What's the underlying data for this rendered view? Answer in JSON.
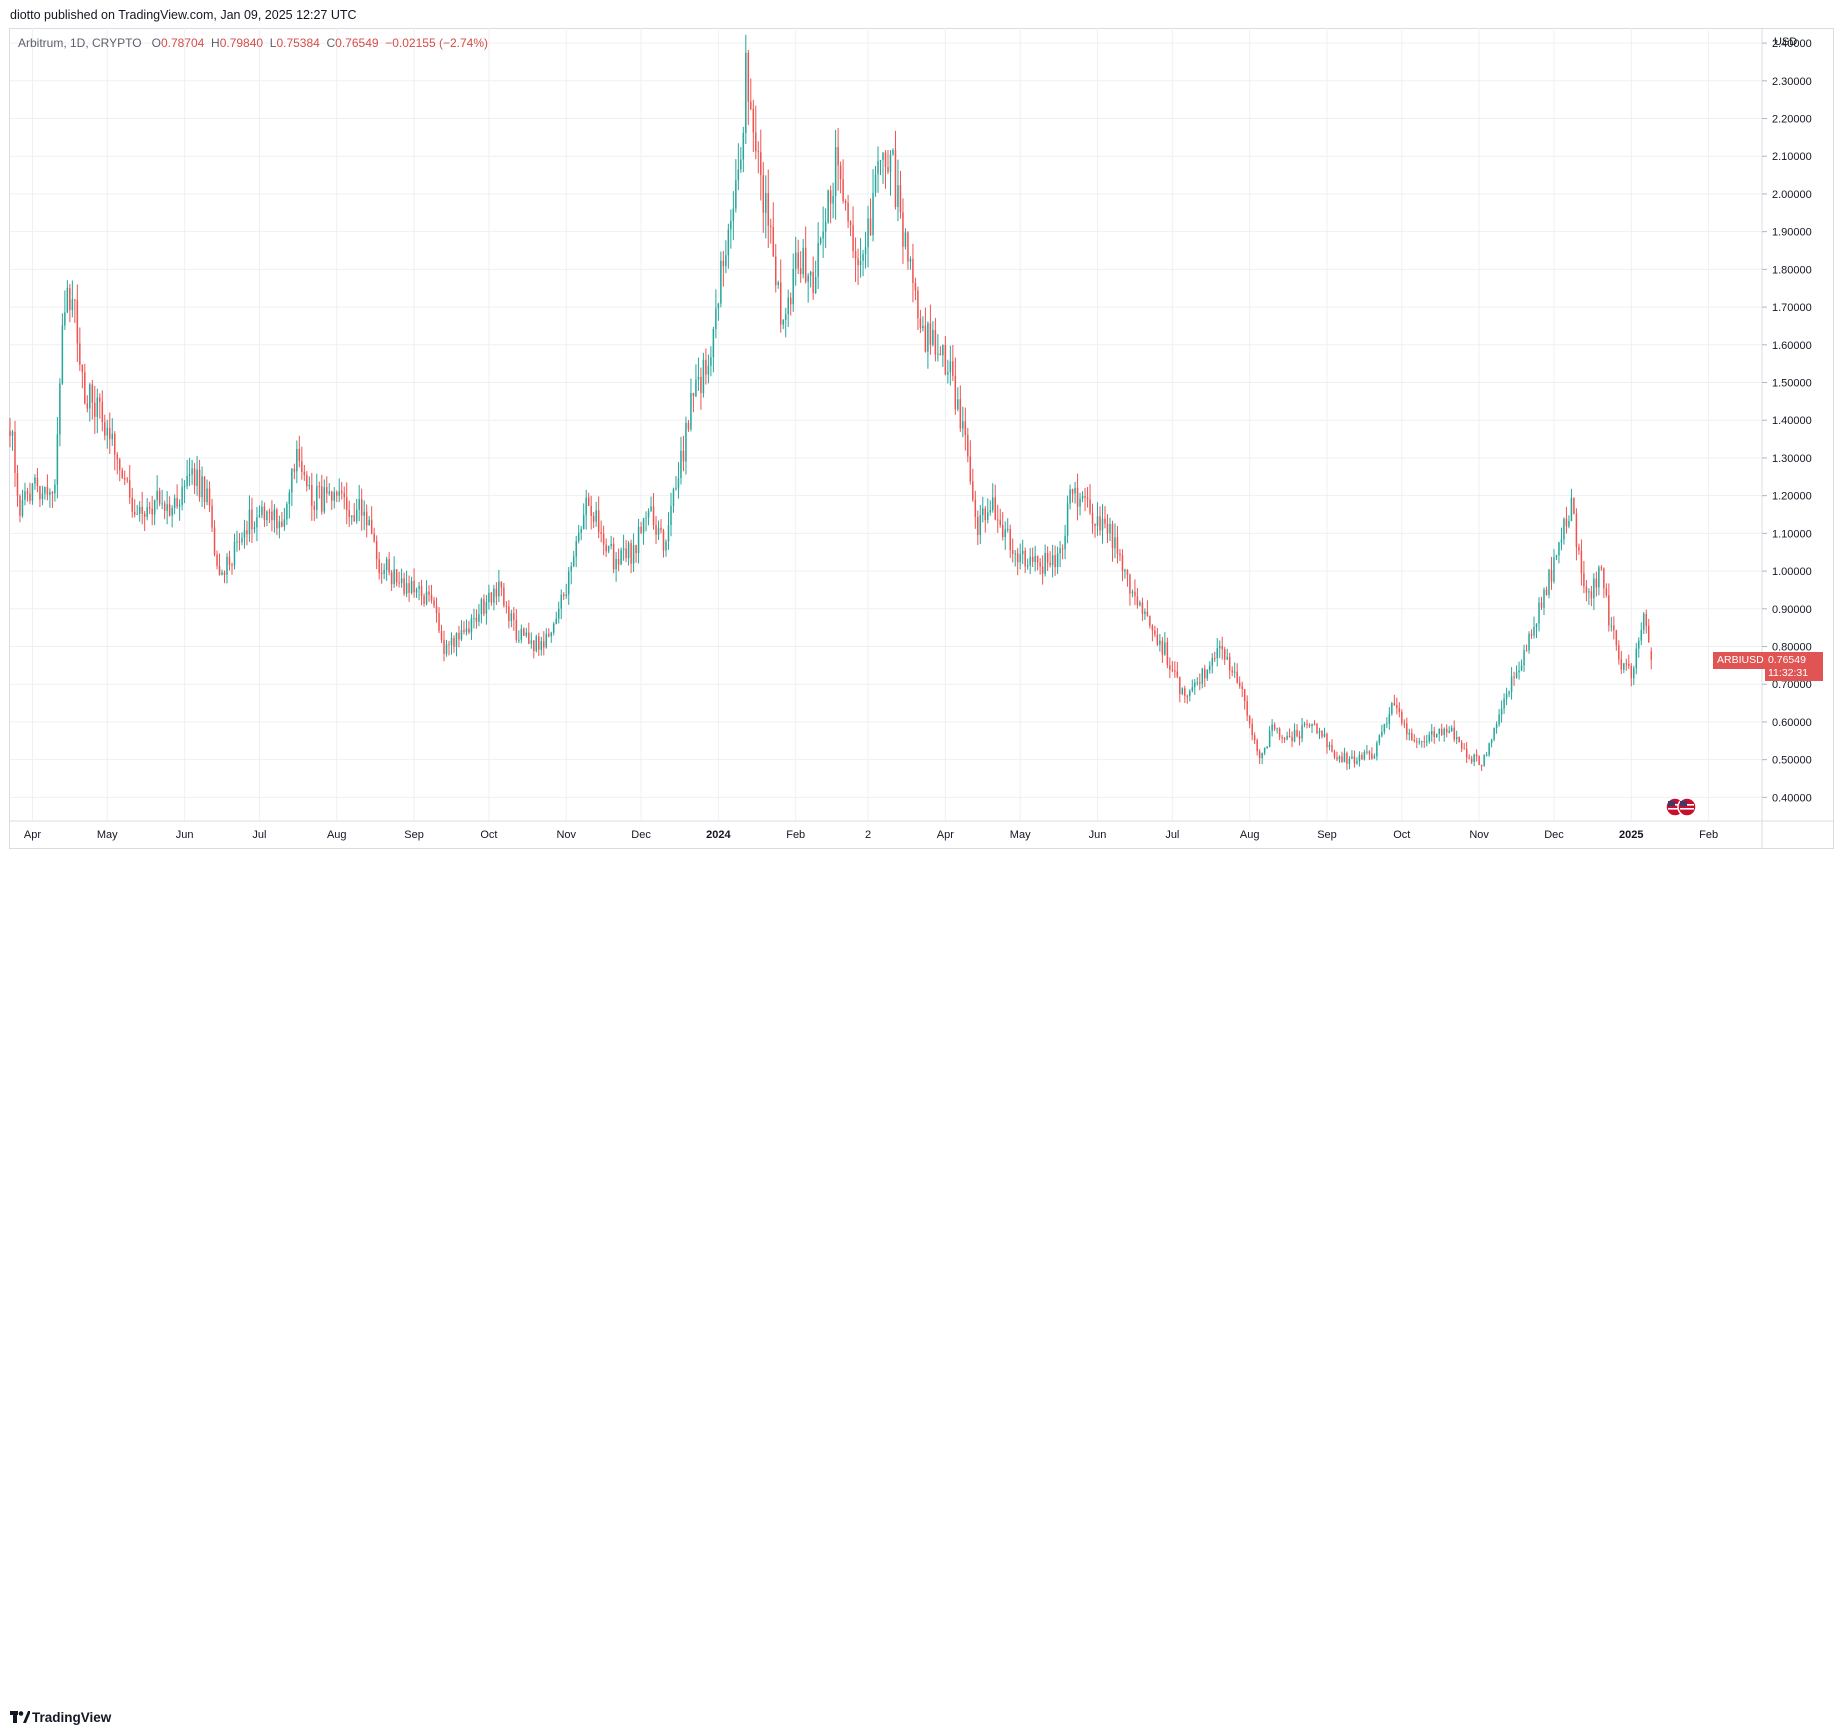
{
  "header": {
    "published_by": "diotto published on TradingView.com, Jan 09, 2025 12:27 UTC"
  },
  "legend": {
    "symbol": "Arbitrum, 1D, CRYPTO",
    "open_label": "O",
    "open": "0.78704",
    "high_label": "H",
    "high": "0.79840",
    "low_label": "L",
    "low": "0.75384",
    "close_label": "C",
    "close": "0.76549",
    "change": "−0.02155 (−2.74%)"
  },
  "axis": {
    "currency": "USD"
  },
  "price_marker": {
    "ticker": "ARBIUSD",
    "price": "0.76549",
    "countdown": "11:32:31"
  },
  "footer": {
    "brand": "TradingView"
  },
  "colors": {
    "up": "#26a69a",
    "down": "#ef5350",
    "grid": "#eef0f3",
    "price_tag": "#e05454"
  },
  "icons": {
    "brand_logo": "tradingview-logo-icon",
    "region": "us-flag-icon"
  },
  "chart_data": {
    "type": "candlestick",
    "title": "Arbitrum, 1D, CRYPTO",
    "ylabel": "USD",
    "ylim": [
      0.34,
      2.44
    ],
    "y_ticks": [
      "2.40000",
      "2.30000",
      "2.20000",
      "2.10000",
      "2.00000",
      "1.90000",
      "1.80000",
      "1.70000",
      "1.60000",
      "1.50000",
      "1.40000",
      "1.30000",
      "1.20000",
      "1.10000",
      "1.00000",
      "0.90000",
      "0.80000",
      "0.70000",
      "0.60000",
      "0.50000",
      "0.40000"
    ],
    "x_ticks": [
      "Apr",
      "May",
      "Jun",
      "Jul",
      "Aug",
      "Sep",
      "Oct",
      "Nov",
      "Dec",
      "2024",
      "Feb",
      "2",
      "Apr",
      "May",
      "Jun",
      "Jul",
      "Aug",
      "Sep",
      "Oct",
      "Nov",
      "Dec",
      "2025",
      "Feb"
    ],
    "x_range": [
      "2023-03-23",
      "2025-02-22"
    ],
    "price_path": [
      [
        "2023-03-23",
        1.4
      ],
      [
        "2023-03-27",
        1.16
      ],
      [
        "2023-04-02",
        1.23
      ],
      [
        "2023-04-10",
        1.22
      ],
      [
        "2023-04-13",
        1.68
      ],
      [
        "2023-04-17",
        1.72
      ],
      [
        "2023-04-22",
        1.48
      ],
      [
        "2023-04-30",
        1.4
      ],
      [
        "2023-05-06",
        1.3
      ],
      [
        "2023-05-12",
        1.13
      ],
      [
        "2023-05-20",
        1.18
      ],
      [
        "2023-05-28",
        1.17
      ],
      [
        "2023-06-03",
        1.26
      ],
      [
        "2023-06-10",
        1.2
      ],
      [
        "2023-06-15",
        0.97
      ],
      [
        "2023-06-25",
        1.12
      ],
      [
        "2023-07-03",
        1.17
      ],
      [
        "2023-07-10",
        1.12
      ],
      [
        "2023-07-16",
        1.3
      ],
      [
        "2023-07-22",
        1.2
      ],
      [
        "2023-08-05",
        1.17
      ],
      [
        "2023-08-13",
        1.15
      ],
      [
        "2023-08-18",
        1.02
      ],
      [
        "2023-08-30",
        0.95
      ],
      [
        "2023-09-10",
        0.91
      ],
      [
        "2023-09-12",
        0.8
      ],
      [
        "2023-09-22",
        0.84
      ],
      [
        "2023-10-04",
        0.96
      ],
      [
        "2023-10-12",
        0.84
      ],
      [
        "2023-10-21",
        0.8
      ],
      [
        "2023-10-26",
        0.83
      ],
      [
        "2023-11-03",
        1.0
      ],
      [
        "2023-11-10",
        1.19
      ],
      [
        "2023-11-20",
        1.03
      ],
      [
        "2023-11-28",
        1.05
      ],
      [
        "2023-12-04",
        1.16
      ],
      [
        "2023-12-10",
        1.06
      ],
      [
        "2023-12-15",
        1.22
      ],
      [
        "2023-12-22",
        1.47
      ],
      [
        "2023-12-28",
        1.56
      ],
      [
        "2024-01-05",
        1.9
      ],
      [
        "2024-01-10",
        2.05
      ],
      [
        "2024-01-12",
        2.32
      ],
      [
        "2024-01-16",
        2.1
      ],
      [
        "2024-01-21",
        1.92
      ],
      [
        "2024-01-27",
        1.66
      ],
      [
        "2024-02-02",
        1.83
      ],
      [
        "2024-02-09",
        1.78
      ],
      [
        "2024-02-15",
        2.03
      ],
      [
        "2024-02-18",
        2.08
      ],
      [
        "2024-02-25",
        1.83
      ],
      [
        "2024-03-03",
        1.95
      ],
      [
        "2024-03-07",
        2.12
      ],
      [
        "2024-03-11",
        2.06
      ],
      [
        "2024-03-17",
        1.8
      ],
      [
        "2024-03-24",
        1.63
      ],
      [
        "2024-04-03",
        1.53
      ],
      [
        "2024-04-08",
        1.38
      ],
      [
        "2024-04-13",
        1.12
      ],
      [
        "2024-04-20",
        1.17
      ],
      [
        "2024-05-01",
        1.03
      ],
      [
        "2024-05-10",
        1.02
      ],
      [
        "2024-05-17",
        1.04
      ],
      [
        "2024-05-22",
        1.22
      ],
      [
        "2024-06-01",
        1.13
      ],
      [
        "2024-06-05",
        1.11
      ],
      [
        "2024-06-12",
        0.99
      ],
      [
        "2024-06-20",
        0.89
      ],
      [
        "2024-06-28",
        0.79
      ],
      [
        "2024-07-05",
        0.67
      ],
      [
        "2024-07-12",
        0.72
      ],
      [
        "2024-07-20",
        0.79
      ],
      [
        "2024-07-28",
        0.7
      ],
      [
        "2024-08-05",
        0.5
      ],
      [
        "2024-08-10",
        0.58
      ],
      [
        "2024-08-20",
        0.56
      ],
      [
        "2024-08-26",
        0.61
      ],
      [
        "2024-09-03",
        0.52
      ],
      [
        "2024-09-10",
        0.5
      ],
      [
        "2024-09-20",
        0.52
      ],
      [
        "2024-09-28",
        0.66
      ],
      [
        "2024-10-05",
        0.55
      ],
      [
        "2024-10-12",
        0.56
      ],
      [
        "2024-10-20",
        0.58
      ],
      [
        "2024-10-26",
        0.52
      ],
      [
        "2024-11-02",
        0.49
      ],
      [
        "2024-11-10",
        0.64
      ],
      [
        "2024-11-20",
        0.79
      ],
      [
        "2024-11-28",
        0.95
      ],
      [
        "2024-12-05",
        1.12
      ],
      [
        "2024-12-08",
        1.16
      ],
      [
        "2024-12-14",
        0.93
      ],
      [
        "2024-12-20",
        1.0
      ],
      [
        "2024-12-24",
        0.84
      ],
      [
        "2024-12-29",
        0.74
      ],
      [
        "2025-01-02",
        0.73
      ],
      [
        "2025-01-06",
        0.91
      ],
      [
        "2025-01-08",
        0.79
      ],
      [
        "2025-01-09",
        0.765
      ]
    ]
  }
}
